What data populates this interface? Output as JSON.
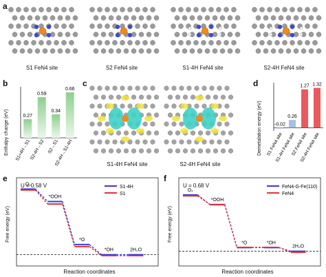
{
  "panels": {
    "a": {
      "label": "a",
      "sites": [
        "S1 FeN4 site",
        "S2 FeN4 site",
        "S1-4H FeN4 site",
        "S2-4H FeN4 site"
      ]
    },
    "b": {
      "label": "b",
      "ylabel": "Enthalpy change (eV)"
    },
    "c": {
      "label": "c",
      "captions": [
        "S1-4H FeN4 site",
        "S2-4H FeN4 site"
      ]
    },
    "d": {
      "label": "d",
      "ylabel": "Demetalation energy (eV)"
    },
    "e": {
      "label": "e",
      "condition": "U = 0.58 V",
      "ylabel": "Free energy (eV)",
      "xlabel": "Reaction coordinates"
    },
    "f": {
      "label": "f",
      "condition": "U = 0.68 V",
      "ylabel": "Free energy (eV)",
      "xlabel": "Reaction coordinates"
    }
  },
  "chart_data": [
    {
      "panel": "b",
      "type": "bar",
      "categories": [
        "S1+4H→S1",
        "S2-4H→S2",
        "S2→S1",
        "S2-4H→S1-4H"
      ],
      "values": [
        0.27,
        0.59,
        0.34,
        0.66
      ],
      "value_labels": [
        "0.27",
        "0.59",
        "0.34",
        "0.66"
      ],
      "ylabel": "Enthalpy change (eV)",
      "ylim": [
        0,
        0.7
      ],
      "color": "#8fcf8f"
    },
    {
      "panel": "d",
      "type": "bar",
      "categories": [
        "S1 FeN4 site",
        "S1-4H FeN4 site",
        "S2 FeN4 site",
        "S2-4H FeN4 site"
      ],
      "values": [
        -0.02,
        0.26,
        1.27,
        1.32
      ],
      "value_labels": [
        "-0.02",
        "0.26",
        "1.27",
        "1.32"
      ],
      "ylabel": "Demetalation energy (eV)",
      "ylim": [
        -0.1,
        1.4
      ],
      "colors": [
        "#9db7e6",
        "#9db7e6",
        "#e8474d",
        "#e8474d"
      ]
    },
    {
      "panel": "e",
      "type": "line",
      "title": "U = 0.58 V",
      "xlabel": "Reaction coordinates",
      "ylabel": "Free energy (eV)",
      "steps": [
        "O2",
        "*OOH",
        "*O",
        "*OH",
        "2H2O"
      ],
      "step_labels": [
        "O₂",
        "*OOH",
        "*O",
        "*OH",
        "2H₂O"
      ],
      "series": [
        {
          "name": "S1-4H",
          "values": [
            2.9,
            2.35,
            0.45,
            0.0,
            0.0
          ],
          "color": "#3a3ad6"
        },
        {
          "name": "S1",
          "values": [
            2.9,
            2.28,
            0.4,
            0.0,
            0.0
          ],
          "color": "#e0303a"
        }
      ],
      "legend_position": "top-right"
    },
    {
      "panel": "f",
      "type": "line",
      "title": "U = 0.68 V",
      "xlabel": "Reaction coordinates",
      "ylabel": "Free energy (eV)",
      "steps": [
        "O2",
        "*OOH",
        "*O",
        "*OH",
        "2H2O"
      ],
      "step_labels": [
        "O₂",
        "*OOH",
        "*O",
        "*OH",
        "2H₂O"
      ],
      "series": [
        {
          "name": "FeN4-G-Fe(110)",
          "values": [
            2.3,
            1.9,
            0.15,
            0.15,
            0.0
          ],
          "color": "#3a3ad6"
        },
        {
          "name": "FeN4",
          "values": [
            2.3,
            1.95,
            0.2,
            0.2,
            0.0
          ],
          "color": "#e0303a"
        }
      ],
      "legend_position": "top-right"
    }
  ]
}
